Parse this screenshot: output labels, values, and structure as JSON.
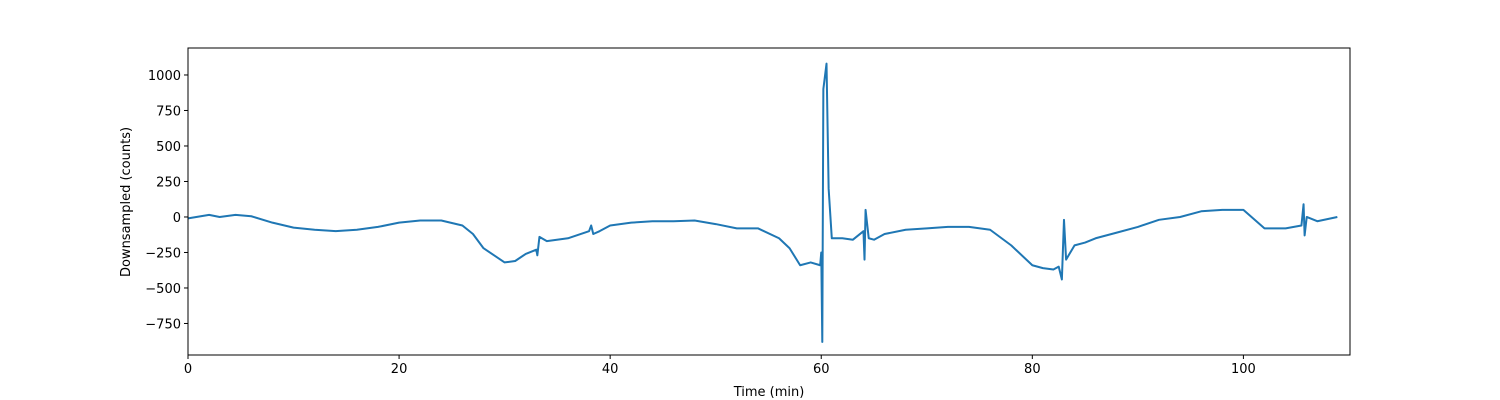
{
  "chart_data": {
    "type": "line",
    "xlabel": "Time (min)",
    "ylabel": "Downsampled (counts)",
    "color": "#1f77b4",
    "x": [
      0,
      2,
      3,
      4.5,
      6,
      8,
      10,
      12,
      14,
      16,
      18,
      20,
      22,
      24,
      26,
      27,
      28,
      29,
      30,
      31,
      32,
      33,
      33.1,
      33.3,
      34,
      36,
      38,
      38.2,
      38.4,
      39,
      40,
      42,
      44,
      46,
      48,
      50,
      52,
      54,
      56,
      57,
      58,
      59,
      59.9,
      60.0,
      60.1,
      60.2,
      60.5,
      60.7,
      61,
      62,
      63,
      64,
      64.1,
      64.2,
      64.5,
      65,
      66,
      68,
      70,
      72,
      74,
      76,
      78,
      80,
      81,
      82,
      82.5,
      82.8,
      83,
      83.2,
      84,
      85,
      86,
      88,
      90,
      92,
      94,
      96,
      98,
      100,
      102,
      104,
      105.5,
      105.7,
      105.8,
      106,
      107,
      108.9
    ],
    "values": [
      -10,
      15,
      0,
      15,
      5,
      -40,
      -75,
      -90,
      -100,
      -90,
      -70,
      -40,
      -25,
      -25,
      -60,
      -120,
      -220,
      -270,
      -320,
      -310,
      -260,
      -230,
      -270,
      -140,
      -170,
      -150,
      -100,
      -60,
      -120,
      -100,
      -60,
      -40,
      -30,
      -30,
      -25,
      -50,
      -80,
      -80,
      -150,
      -220,
      -340,
      -320,
      -340,
      -250,
      -880,
      900,
      1080,
      200,
      -150,
      -150,
      -160,
      -100,
      -300,
      50,
      -150,
      -160,
      -120,
      -90,
      -80,
      -70,
      -70,
      -90,
      -200,
      -340,
      -360,
      -370,
      -350,
      -440,
      -20,
      -300,
      -200,
      -180,
      -150,
      -110,
      -70,
      -20,
      0,
      40,
      50,
      50,
      -80,
      -80,
      -60,
      90,
      -130,
      0,
      -30,
      0
    ],
    "xlim": [
      0,
      110.1
    ],
    "ylim": [
      -972,
      1190
    ],
    "xticks": [
      0,
      20,
      40,
      60,
      80,
      100
    ],
    "yticks": [
      {
        "value": -750,
        "label": "−750"
      },
      {
        "value": -500,
        "label": "−500"
      },
      {
        "value": -250,
        "label": "−250"
      },
      0,
      250,
      500,
      750,
      1000
    ]
  }
}
